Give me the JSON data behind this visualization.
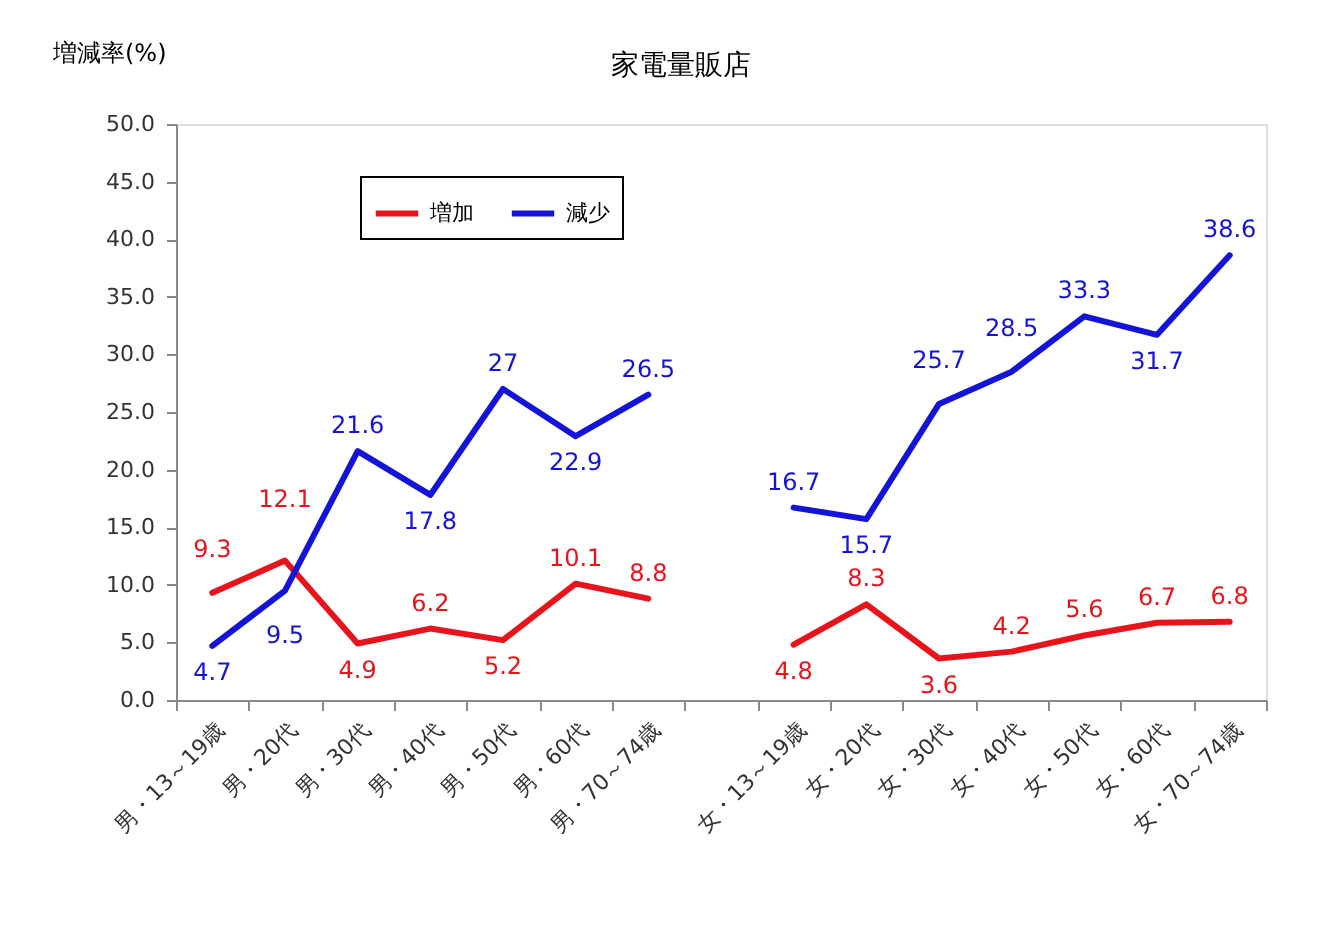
{
  "chart_data": {
    "type": "line",
    "title": "家電量販店",
    "ylabel": "増減率(%)",
    "categories": [
      "男・13～19歳",
      "男・20代",
      "男・30代",
      "男・40代",
      "男・50代",
      "男・60代",
      "男・70～74歳",
      null,
      "女・13～19歳",
      "女・20代",
      "女・30代",
      "女・40代",
      "女・50代",
      "女・60代",
      "女・70～74歳"
    ],
    "series": [
      {
        "name": "増加",
        "color": "#e8141c",
        "values": [
          9.3,
          12.1,
          4.9,
          6.2,
          5.2,
          10.1,
          8.8,
          null,
          4.8,
          8.3,
          3.6,
          4.2,
          5.6,
          6.7,
          6.8
        ]
      },
      {
        "name": "減少",
        "color": "#1414d8",
        "values": [
          4.7,
          9.5,
          21.6,
          17.8,
          27,
          22.9,
          26.5,
          null,
          16.7,
          15.7,
          25.7,
          28.5,
          33.3,
          31.7,
          38.6
        ]
      }
    ],
    "ylim": [
      0,
      50
    ],
    "yticks": [
      {
        "value": 0,
        "label": "0.0"
      },
      {
        "value": 5,
        "label": "5.0"
      },
      {
        "value": 10,
        "label": "10.0"
      },
      {
        "value": 15,
        "label": "15.0"
      },
      {
        "value": 20,
        "label": "20.0"
      },
      {
        "value": 25,
        "label": "25.0"
      },
      {
        "value": 30,
        "label": "30.0"
      },
      {
        "value": 35,
        "label": "35.0"
      },
      {
        "value": 40,
        "label": "40.0"
      },
      {
        "value": 45,
        "label": "45.0"
      },
      {
        "value": 50,
        "label": "50.0"
      }
    ],
    "data_labels": true,
    "legend": "top left",
    "grid": false
  }
}
